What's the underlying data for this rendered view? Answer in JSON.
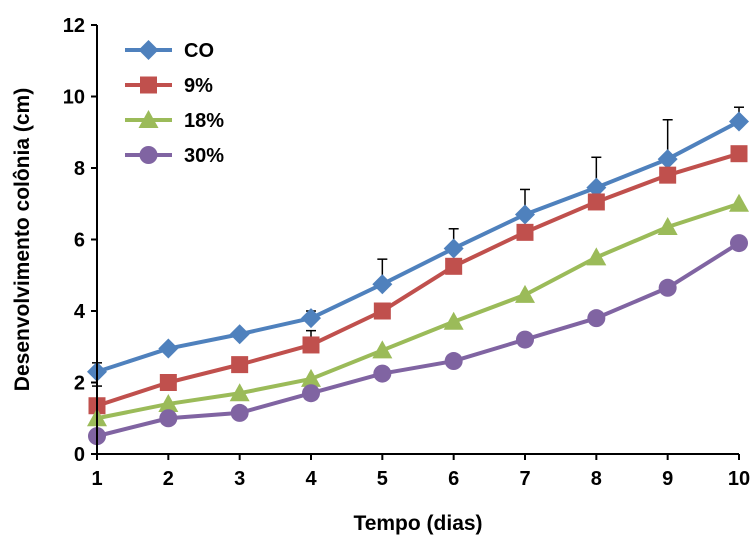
{
  "chart_data": {
    "type": "line",
    "title": "",
    "xlabel": "Tempo (dias)",
    "ylabel": "Desenvolvimento colônia (cm)",
    "x": [
      1,
      2,
      3,
      4,
      5,
      6,
      7,
      8,
      9,
      10
    ],
    "xlim": [
      1,
      10
    ],
    "ylim": [
      0,
      12
    ],
    "yticks": [
      0,
      2,
      4,
      6,
      8,
      10,
      12
    ],
    "grid": false,
    "legend_position": "top-left",
    "series": [
      {
        "name": "CO",
        "color": "#4F81BD",
        "marker": "diamond",
        "values": [
          2.3,
          2.95,
          3.35,
          3.8,
          4.75,
          5.75,
          6.7,
          7.45,
          8.25,
          9.3
        ],
        "error": [
          0.25,
          0.0,
          0.0,
          0.2,
          0.7,
          0.55,
          0.7,
          0.85,
          1.1,
          0.4
        ]
      },
      {
        "name": "9%",
        "color": "#C0504D",
        "marker": "square",
        "values": [
          1.35,
          2.0,
          2.5,
          3.05,
          4.0,
          5.25,
          6.2,
          7.05,
          7.8,
          8.4
        ],
        "error": [
          0.55,
          0.0,
          0.0,
          0.4,
          0.0,
          0.0,
          0.0,
          0.0,
          0.0,
          0.0
        ]
      },
      {
        "name": "18%",
        "color": "#9BBB59",
        "marker": "triangle",
        "values": [
          1.0,
          1.4,
          1.7,
          2.1,
          2.9,
          3.7,
          4.45,
          5.5,
          6.35,
          7.0
        ],
        "error": [
          0.0,
          0.0,
          0.0,
          0.0,
          0.0,
          0.0,
          0.0,
          0.0,
          0.0,
          0.0
        ]
      },
      {
        "name": "30%",
        "color": "#8064A2",
        "marker": "circle",
        "values": [
          0.5,
          1.0,
          1.15,
          1.7,
          2.25,
          2.6,
          3.2,
          3.8,
          4.65,
          5.9
        ],
        "error": [
          0.0,
          0.0,
          0.0,
          0.0,
          0.0,
          0.0,
          0.0,
          0.0,
          0.0,
          0.0
        ]
      }
    ]
  }
}
